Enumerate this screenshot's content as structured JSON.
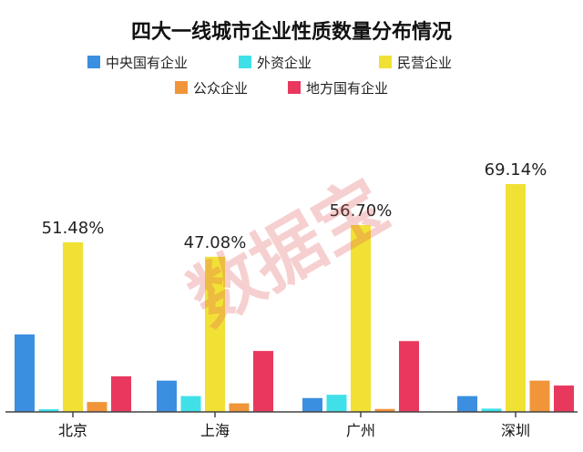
{
  "chart_data": {
    "type": "bar",
    "title": "四大一线城市企业性质数量分布情况",
    "categories": [
      "北京",
      "上海",
      "广州",
      "深圳"
    ],
    "series": [
      {
        "name": "中央国有企业",
        "color": "#3b8fe0",
        "values": [
          23.5,
          9.5,
          4.2,
          4.8
        ]
      },
      {
        "name": "外资企业",
        "color": "#40e0e8",
        "values": [
          0.8,
          4.8,
          5.2,
          1.0
        ]
      },
      {
        "name": "民营企业",
        "color": "#f2e135",
        "values": [
          51.48,
          47.08,
          56.7,
          69.14
        ]
      },
      {
        "name": "公众企业",
        "color": "#f0953a",
        "values": [
          3.0,
          2.6,
          0.9,
          9.5
        ]
      },
      {
        "name": "地方国有企业",
        "color": "#e8385e",
        "values": [
          10.8,
          18.5,
          21.5,
          8.0
        ]
      }
    ],
    "data_labels": [
      "51.48%",
      "47.08%",
      "56.70%",
      "69.14%"
    ],
    "ylim": [
      0,
      75
    ],
    "legend_position": "top",
    "grid": false
  },
  "watermark": "数据宝"
}
